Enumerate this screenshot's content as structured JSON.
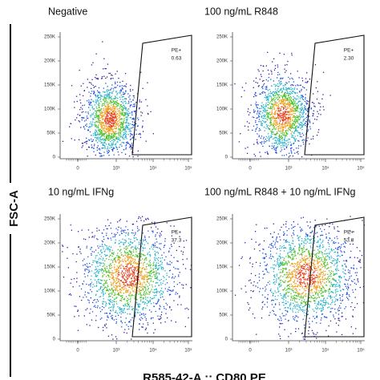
{
  "y_axis_label": "FSC-A",
  "x_axis_label": "R585-42-A :: CD80 PE",
  "y_ticks": [
    "0",
    "50K",
    "100K",
    "150K",
    "200K",
    "250K"
  ],
  "x_ticks": [
    "0",
    "10³",
    "10⁴",
    "10⁵"
  ],
  "panels": [
    {
      "title": "Negative",
      "gate_label": "PE+",
      "gate_value": "0.63"
    },
    {
      "title": "100 ng/mL R848",
      "gate_label": "PE+",
      "gate_value": "2.30"
    },
    {
      "title": "10 ng/mL IFNg",
      "gate_label": "PE+",
      "gate_value": "37.3"
    },
    {
      "title": "100 ng/mL R848 + 10 ng/mL IFNg",
      "gate_label": "PE+",
      "gate_value": "53.8"
    }
  ]
}
